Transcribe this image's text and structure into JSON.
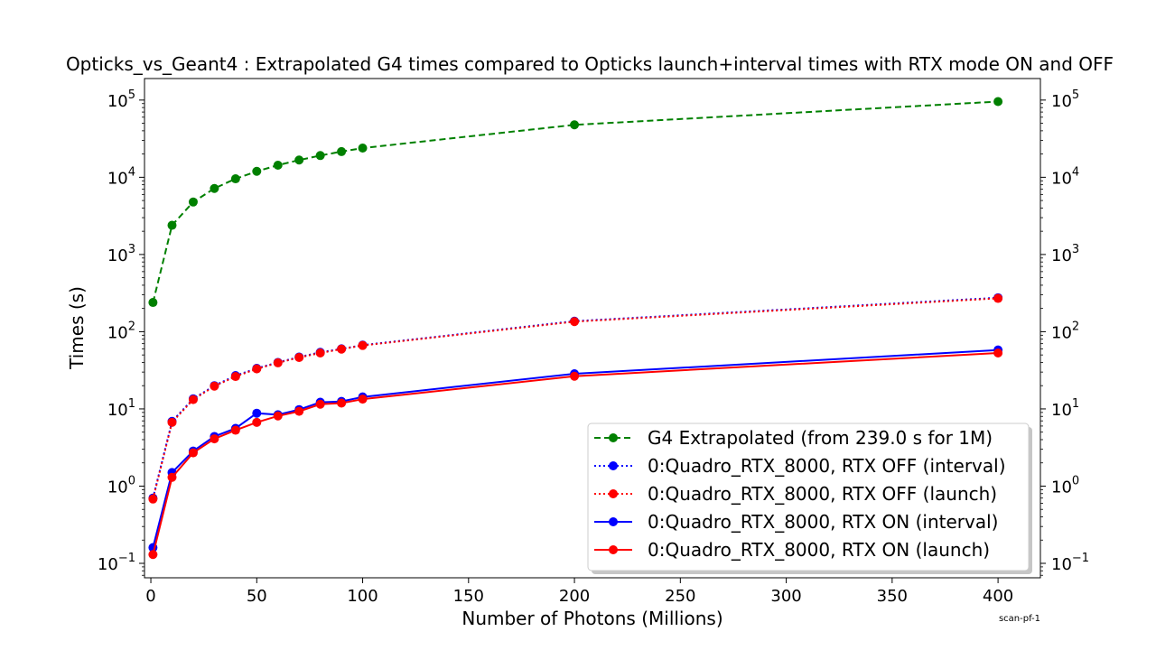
{
  "chart_data": {
    "type": "line",
    "title": "Opticks_vs_Geant4 : Extrapolated G4 times compared to Opticks launch+interval times with RTX mode ON and OFF",
    "xlabel": "Number of Photons (Millions)",
    "ylabel": "Times (s)",
    "xlim": [
      -3,
      420
    ],
    "ylim": [
      0.065,
      190000
    ],
    "yscale": "log",
    "x_ticks": [
      0,
      50,
      100,
      150,
      200,
      250,
      300,
      350,
      400
    ],
    "y_ticks": [
      {
        "value": 0.1,
        "base": "10",
        "exp": "−1"
      },
      {
        "value": 1,
        "base": "10",
        "exp": "0"
      },
      {
        "value": 10,
        "base": "10",
        "exp": "1"
      },
      {
        "value": 100,
        "base": "10",
        "exp": "2"
      },
      {
        "value": 1000,
        "base": "10",
        "exp": "3"
      },
      {
        "value": 10000,
        "base": "10",
        "exp": "4"
      },
      {
        "value": 100000,
        "base": "10",
        "exp": "5"
      }
    ],
    "grid": false,
    "legend_position": "bottom-right",
    "x": [
      1,
      10,
      20,
      30,
      40,
      50,
      60,
      70,
      80,
      90,
      100,
      200,
      400
    ],
    "series": [
      {
        "name": "G4 Extrapolated (from 239.0 s for 1M)",
        "color": "#008000",
        "line_style": "dashed",
        "values": [
          239,
          2390,
          4780,
          7170,
          9560,
          11950,
          14340,
          16730,
          19120,
          21510,
          23900,
          47800,
          95600
        ]
      },
      {
        "name": "0:Quadro_RTX_8000, RTX OFF (interval)",
        "color": "#0000ff",
        "line_style": "dotted",
        "values": [
          0.7,
          6.9,
          13.5,
          20,
          27,
          33.5,
          40,
          47,
          54,
          60,
          67,
          137,
          275
        ]
      },
      {
        "name": "0:Quadro_RTX_8000, RTX OFF (launch)",
        "color": "#ff0000",
        "line_style": "dotted",
        "values": [
          0.68,
          6.7,
          13.2,
          19.7,
          26.3,
          33,
          39.5,
          46.3,
          53,
          59.5,
          66.3,
          135,
          270
        ]
      },
      {
        "name": "0:Quadro_RTX_8000, RTX ON (interval)",
        "color": "#0000ff",
        "line_style": "solid",
        "values": [
          0.16,
          1.5,
          2.85,
          4.4,
          5.6,
          8.8,
          8.4,
          9.8,
          12.2,
          12.5,
          14.3,
          28.5,
          58
        ]
      },
      {
        "name": "0:Quadro_RTX_8000, RTX ON (launch)",
        "color": "#ff0000",
        "line_style": "solid",
        "values": [
          0.13,
          1.3,
          2.7,
          4.1,
          5.3,
          6.7,
          8.1,
          9.3,
          11.5,
          11.9,
          13.4,
          26.5,
          53
        ]
      }
    ]
  },
  "annotation": "scan-pf-1"
}
